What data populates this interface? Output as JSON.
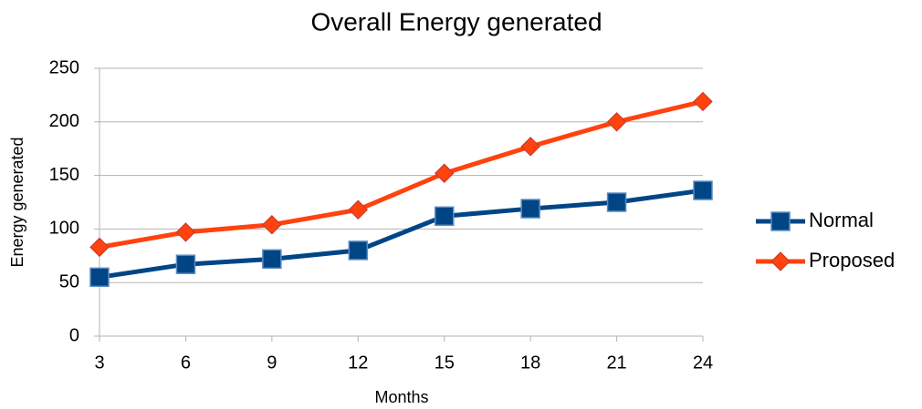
{
  "chart_data": {
    "type": "line",
    "title": "Overall Energy generated",
    "x_label": "Months",
    "y_label": "Energy generated",
    "x": [
      3,
      6,
      9,
      12,
      15,
      18,
      21,
      24
    ],
    "xlim": [
      3,
      24
    ],
    "xticks": [
      3,
      6,
      9,
      12,
      15,
      18,
      21,
      24
    ],
    "ylim": [
      0,
      250
    ],
    "yticks": [
      0,
      50,
      100,
      150,
      200,
      250
    ],
    "grid": true,
    "legend": "right",
    "series": [
      {
        "name": "Normal",
        "color": "#004586",
        "marker": "square",
        "values": [
          55,
          67,
          72,
          80,
          112,
          119,
          125,
          136
        ]
      },
      {
        "name": "Proposed",
        "color": "#ff420e",
        "marker": "diamond",
        "values": [
          83,
          97,
          104,
          118,
          152,
          177,
          200,
          219
        ]
      }
    ]
  }
}
